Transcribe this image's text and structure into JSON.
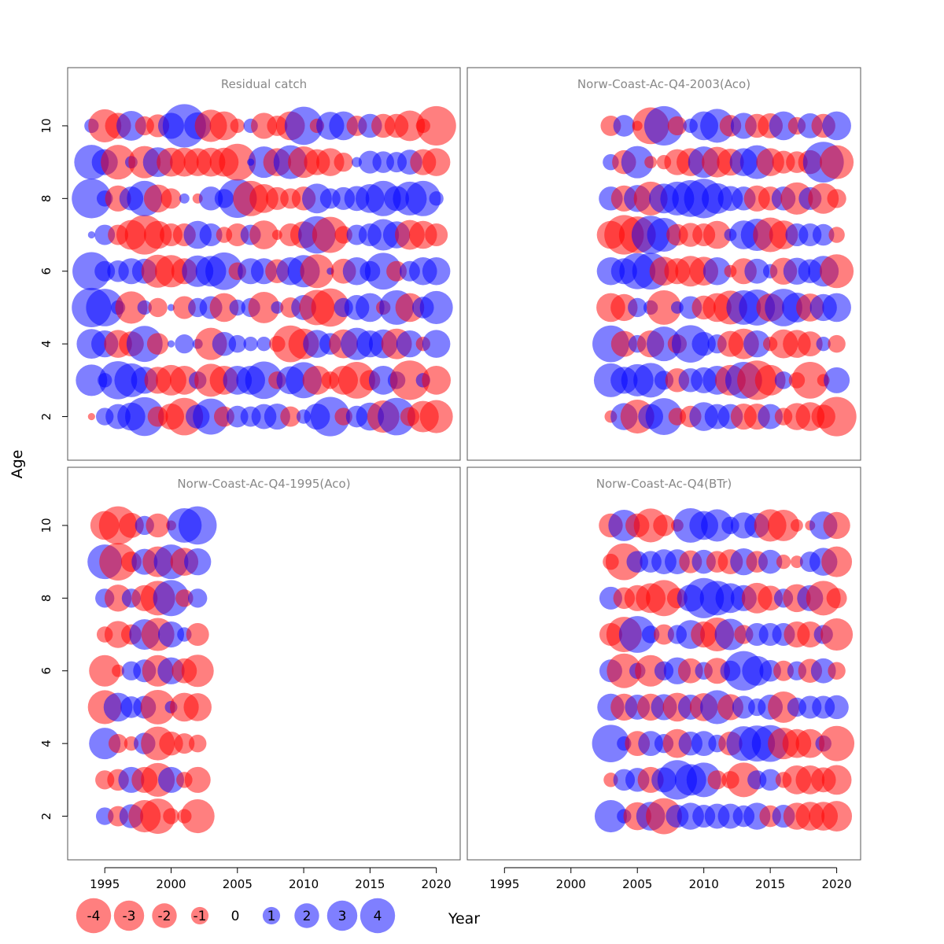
{
  "chart_data": {
    "type": "scatter",
    "subtype": "residual-bubble",
    "ylabel": "Age",
    "xlabel": "Year",
    "xticks": [
      1995,
      2000,
      2005,
      2010,
      2015,
      2020
    ],
    "yticks": [
      2,
      4,
      6,
      8,
      10
    ],
    "xlim": [
      1992.2,
      2021.8
    ],
    "ylim": [
      0.8,
      11.6
    ],
    "colors": {
      "positive": "#0000ff",
      "negative": "#ff0000",
      "title": "#888888",
      "frame": "#555555"
    },
    "ages": [
      2,
      3,
      4,
      5,
      6,
      7,
      8,
      9,
      10
    ],
    "legend": {
      "labels": [
        "-4",
        "-3",
        "-2",
        "-1",
        "0",
        "1",
        "2",
        "3",
        "4"
      ],
      "values": [
        -4,
        -3,
        -2,
        -1,
        0,
        1,
        2,
        3,
        4
      ]
    },
    "panels": [
      {
        "title": "Residual catch",
        "years": [
          1994,
          1995,
          1996,
          1997,
          1998,
          1999,
          2000,
          2001,
          2002,
          2003,
          2004,
          2005,
          2006,
          2007,
          2008,
          2009,
          2010,
          2011,
          2012,
          2013,
          2014,
          2015,
          2016,
          2017,
          2018,
          2019,
          2020
        ],
        "residuals": {
          "2": [
            -0.1,
            0.6,
            1.2,
            1.5,
            2.9,
            -0.8,
            -1.3,
            -2.7,
            1.1,
            2.5,
            -0.8,
            0.9,
            0.8,
            1.2,
            1.3,
            -0.8,
            0.4,
            1.3,
            3.0,
            -0.6,
            0.9,
            1.5,
            -2.0,
            2.7,
            -0.7,
            -1.9,
            -2.1
          ],
          "3": [
            1.9,
            0.4,
            2.8,
            2.2,
            1.4,
            -1.4,
            -1.8,
            -1.6,
            0.6,
            -2.1,
            -1.6,
            1.6,
            1.6,
            2.7,
            -0.6,
            1.5,
            2.5,
            -1.6,
            -0.6,
            -1.6,
            -2.6,
            -0.8,
            1.6,
            0.6,
            -3.0,
            0.4,
            -1.6
          ],
          "4": [
            1.7,
            1.4,
            -1.5,
            -1.2,
            2.5,
            -0.9,
            0.1,
            0.7,
            0.2,
            -2.0,
            1.1,
            0.6,
            0.4,
            0.4,
            -0.5,
            -2.6,
            -1.8,
            1.5,
            0.9,
            -1.6,
            2.0,
            1.4,
            1.6,
            -1.8,
            1.4,
            -0.4,
            1.5
          ],
          "5": [
            3.0,
            2.7,
            0.4,
            -2.0,
            0.4,
            -0.7,
            0.1,
            -1.0,
            0.7,
            1.0,
            -1.6,
            0.5,
            0.7,
            -1.9,
            0.3,
            -0.8,
            1.2,
            -2.4,
            -2.8,
            0.7,
            1.2,
            1.6,
            -0.4,
            2.3,
            -1.6,
            0.9,
            2.1
          ],
          "6": [
            2.8,
            0.8,
            0.9,
            1.3,
            1.2,
            -2.1,
            -2.0,
            -1.3,
            1.9,
            1.8,
            2.7,
            -0.6,
            1.3,
            1.3,
            -1.1,
            1.5,
            2.0,
            -2.2,
            0.1,
            -1.2,
            1.5,
            0.8,
            2.6,
            -0.8,
            0.8,
            1.5,
            1.5
          ],
          "7": [
            0.1,
            0.8,
            -0.8,
            -1.7,
            -3.0,
            -1.5,
            -1.0,
            -1.0,
            1.5,
            1.0,
            -0.5,
            -1.0,
            0.8,
            -1.6,
            -0.2,
            -1.0,
            -1.4,
            2.7,
            -2.5,
            -0.6,
            0.8,
            1.0,
            1.9,
            1.4,
            -1.7,
            -1.5,
            -1.0
          ],
          "8": [
            3.0,
            0.5,
            -1.3,
            1.1,
            2.4,
            -1.5,
            -0.8,
            0.2,
            -0.2,
            1.1,
            0.7,
            2.9,
            -2.4,
            -1.6,
            -1.0,
            -0.8,
            -1.1,
            1.7,
            0.8,
            1.0,
            1.2,
            1.6,
            2.4,
            1.2,
            2.2,
            2.4,
            0.4
          ],
          "9": [
            2.3,
            1.3,
            -2.3,
            0.3,
            -2.0,
            1.7,
            -1.6,
            -1.6,
            -1.5,
            -1.6,
            -1.6,
            -2.6,
            0.1,
            1.9,
            -1.5,
            2.2,
            -1.9,
            -1.3,
            -1.5,
            -0.7,
            0.2,
            1.0,
            0.9,
            0.8,
            1.2,
            -1.3,
            -1.5
          ],
          "10": [
            0.4,
            -2.1,
            -1.3,
            1.7,
            -0.7,
            -1.0,
            1.3,
            3.6,
            1.4,
            -2.0,
            -1.6,
            -0.4,
            0.4,
            -1.3,
            -0.8,
            -1.6,
            2.8,
            -0.4,
            1.5,
            1.6,
            -0.8,
            1.1,
            -1.1,
            -1.1,
            -1.8,
            -0.4,
            -3.0
          ]
        }
      },
      {
        "title": "Norw-Coast-Ac-Q4-2003(Aco)",
        "years": [
          2003,
          2004,
          2005,
          2006,
          2007,
          2008,
          2009,
          2010,
          2011,
          2012,
          2013,
          2014,
          2015,
          2016,
          2017,
          2018,
          2019,
          2020
        ],
        "residuals": {
          "2": [
            -0.3,
            1.4,
            -2.2,
            1.2,
            2.6,
            -0.6,
            -0.9,
            1.6,
            1.2,
            1.2,
            -1.3,
            -1.3,
            1.2,
            -0.6,
            -1.4,
            -1.6,
            -1.1,
            -3.0
          ],
          "3": [
            2.2,
            1.4,
            2.0,
            2.3,
            0.7,
            -1.1,
            1.1,
            1.3,
            1.6,
            -1.8,
            2.6,
            -3.0,
            -1.8,
            0.6,
            -0.5,
            -2.6,
            -0.3,
            1.3
          ],
          "4": [
            2.6,
            -1.3,
            0.6,
            -1.4,
            2.3,
            -0.7,
            2.7,
            1.1,
            0.7,
            -1.3,
            -1.8,
            1.4,
            -0.4,
            -1.6,
            -1.5,
            -1.2,
            0.4,
            -0.6
          ],
          "5": [
            -1.6,
            -1.4,
            0.7,
            0.4,
            -2.3,
            0.3,
            1.0,
            -1.1,
            -1.6,
            -2.2,
            2.3,
            2.5,
            -1.5,
            2.7,
            1.7,
            -1.5,
            1.4,
            1.6
          ],
          "6": [
            1.5,
            1.3,
            2.5,
            2.6,
            -1.6,
            -1.3,
            -1.8,
            -1.6,
            1.5,
            -0.3,
            -1.3,
            1.2,
            0.4,
            -1.4,
            1.4,
            1.1,
            1.8,
            -2.2
          ],
          "7": [
            -1.5,
            -3.0,
            -2.6,
            2.8,
            2.2,
            -0.9,
            -1.1,
            -1.0,
            -1.5,
            0.3,
            1.6,
            2.0,
            -2.3,
            -1.6,
            1.0,
            1.0,
            0.9,
            -0.5
          ],
          "8": [
            1.1,
            -1.3,
            1.4,
            -2.2,
            1.7,
            2.2,
            2.6,
            3.0,
            1.8,
            1.2,
            1.1,
            -1.3,
            -1.1,
            1.1,
            -2.0,
            1.0,
            -1.8,
            -0.7
          ],
          "9": [
            0.5,
            -1.1,
            2.0,
            -0.3,
            -0.4,
            -1.3,
            -1.5,
            1.9,
            -1.8,
            -1.4,
            1.5,
            2.2,
            -1.5,
            -1.0,
            -0.9,
            -1.1,
            3.2,
            -2.2
          ],
          "10": [
            -0.8,
            0.9,
            -0.2,
            -2.6,
            3.0,
            -0.7,
            0.4,
            1.6,
            2.2,
            -0.9,
            1.3,
            -1.1,
            -1.2,
            1.6,
            -0.6,
            1.2,
            -1.1,
            1.6
          ]
        }
      },
      {
        "title": "Norw-Coast-Ac-Q4-1995(Aco)",
        "years": [
          1995,
          1996,
          1997,
          1998,
          1999,
          2000,
          2001,
          2002
        ],
        "residuals": {
          "2": [
            0.6,
            -0.8,
            1.1,
            -2.0,
            -2.4,
            -0.5,
            -0.4,
            -2.2
          ],
          "3": [
            -0.7,
            -0.9,
            1.3,
            -1.3,
            -2.2,
            1.3,
            -0.5,
            -1.3
          ],
          "4": [
            1.9,
            -0.7,
            -0.4,
            0.9,
            -2.2,
            -1.1,
            -0.8,
            -0.6
          ],
          "5": [
            -2.2,
            1.6,
            0.9,
            1.0,
            -2.3,
            0.3,
            -1.6,
            -1.5
          ],
          "6": [
            -1.9,
            -0.3,
            0.7,
            1.0,
            -1.9,
            1.4,
            -1.2,
            -2.0
          ],
          "7": [
            -0.5,
            -1.4,
            -0.8,
            1.8,
            -2.1,
            1.3,
            0.4,
            -1.0
          ],
          "8": [
            0.7,
            -1.4,
            0.7,
            -1.3,
            -2.3,
            2.5,
            -0.6,
            0.7
          ],
          "9": [
            2.3,
            -2.7,
            -0.8,
            1.3,
            -1.8,
            2.3,
            -1.5,
            1.4
          ],
          "10": [
            -1.6,
            -2.8,
            -1.2,
            0.7,
            -1.1,
            -0.2,
            2.3,
            2.8
          ]
        }
      },
      {
        "title": "Norw-Coast-Ac-Q4(BTr)",
        "years": [
          2003,
          2004,
          2005,
          2006,
          2007,
          2008,
          2009,
          2010,
          2011,
          2012,
          2013,
          2014,
          2015,
          2016,
          2017,
          2018,
          2019,
          2020
        ],
        "residuals": {
          "2": [
            2.0,
            0.4,
            -1.5,
            1.6,
            -2.5,
            1.0,
            1.4,
            1.0,
            1.2,
            1.2,
            0.9,
            1.4,
            -0.9,
            1.0,
            -1.4,
            -1.6,
            -1.6,
            -1.8
          ],
          "3": [
            -0.4,
            0.9,
            1.1,
            -1.3,
            1.2,
            3.0,
            1.9,
            2.3,
            -0.7,
            -0.6,
            -2.3,
            0.7,
            0.9,
            -0.5,
            -1.6,
            -1.6,
            -1.2,
            -1.7
          ],
          "4": [
            2.7,
            0.4,
            -1.2,
            1.2,
            0.7,
            -1.6,
            1.1,
            1.2,
            0.6,
            -1.1,
            2.3,
            2.5,
            2.6,
            -1.9,
            -1.6,
            -1.6,
            0.5,
            -2.4
          ],
          "5": [
            1.4,
            -1.4,
            1.2,
            -1.4,
            1.3,
            -1.6,
            1.2,
            -1.5,
            2.2,
            -1.3,
            1.0,
            0.6,
            1.2,
            -1.9,
            0.7,
            1.0,
            1.0,
            1.1
          ],
          "6": [
            1.0,
            -2.3,
            0.5,
            -1.9,
            0.7,
            1.4,
            -1.2,
            0.6,
            -1.3,
            0.8,
            3.0,
            1.7,
            0.9,
            -0.8,
            0.7,
            -1.1,
            1.2,
            -0.6
          ],
          "7": [
            -1.0,
            -2.4,
            2.6,
            0.6,
            -0.8,
            0.7,
            1.6,
            -1.3,
            -2.2,
            1.9,
            -0.7,
            1.0,
            1.0,
            1.0,
            -1.3,
            -1.3,
            0.7,
            -2.0
          ],
          "8": [
            1.0,
            -0.9,
            -1.3,
            -1.7,
            -2.5,
            -0.8,
            1.4,
            3.1,
            2.3,
            1.7,
            1.3,
            -1.8,
            -1.2,
            0.7,
            -1.5,
            1.3,
            -2.3,
            -0.8
          ],
          "9": [
            -0.5,
            -2.6,
            0.9,
            0.9,
            1.2,
            1.2,
            -1.0,
            1.1,
            -0.9,
            -1.2,
            1.4,
            -0.9,
            1.1,
            -0.4,
            -0.3,
            0.8,
            1.5,
            -1.8
          ],
          "10": [
            -1.1,
            1.9,
            -1.1,
            -2.2,
            -0.9,
            -0.3,
            2.3,
            1.6,
            2.0,
            0.6,
            1.3,
            1.2,
            -2.0,
            -1.9,
            -0.3,
            -0.2,
            1.5,
            -1.4
          ]
        }
      }
    ]
  }
}
